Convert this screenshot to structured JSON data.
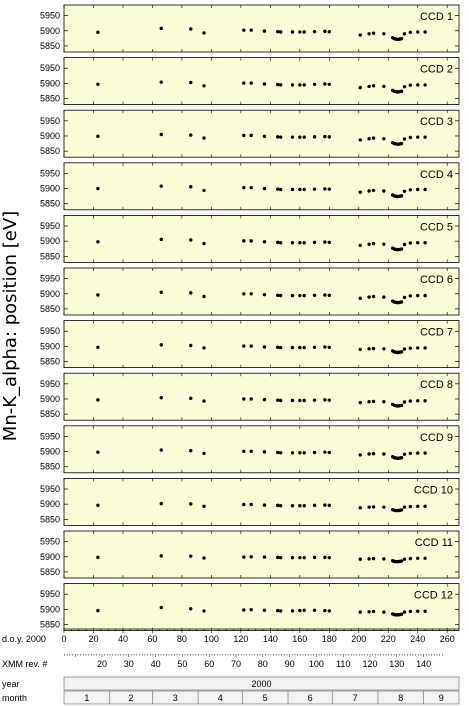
{
  "chart_data": {
    "type": "scatter",
    "ylabel": "Mn-K_alpha:  position  [eV]",
    "panels": [
      {
        "label": "CCD 1"
      },
      {
        "label": "CCD 2"
      },
      {
        "label": "CCD 3"
      },
      {
        "label": "CCD 4"
      },
      {
        "label": "CCD 5"
      },
      {
        "label": "CCD 6"
      },
      {
        "label": "CCD 7"
      },
      {
        "label": "CCD 8"
      },
      {
        "label": "CCD 9"
      },
      {
        "label": "CCD 10"
      },
      {
        "label": "CCD 11"
      },
      {
        "label": "CCD 12"
      }
    ],
    "y_ticks": [
      5950,
      5900,
      5850
    ],
    "ylim": [
      5830,
      5985
    ],
    "xlim": [
      0,
      268
    ],
    "x": [
      23,
      66,
      86,
      95,
      122,
      127,
      136,
      145,
      147,
      155,
      160,
      163,
      170,
      177,
      180,
      201,
      207,
      210,
      217,
      223,
      224,
      225,
      226,
      227,
      228,
      229,
      231,
      235,
      240,
      245
    ],
    "series": [
      {
        "values": [
          5895,
          5908,
          5906,
          5893,
          5902,
          5902,
          5899,
          5897,
          5896,
          5896,
          5896,
          5896,
          5897,
          5898,
          5897,
          5886,
          5890,
          5892,
          5890,
          5877,
          5874,
          5873,
          5872,
          5872,
          5873,
          5874,
          5890,
          5895,
          5896,
          5896
        ]
      },
      {
        "values": [
          5897,
          5904,
          5903,
          5892,
          5901,
          5901,
          5898,
          5896,
          5895,
          5895,
          5895,
          5895,
          5897,
          5898,
          5897,
          5886,
          5890,
          5892,
          5890,
          5877,
          5874,
          5873,
          5872,
          5872,
          5873,
          5874,
          5889,
          5894,
          5895,
          5895
        ]
      },
      {
        "values": [
          5899,
          5905,
          5903,
          5893,
          5902,
          5902,
          5899,
          5897,
          5896,
          5896,
          5896,
          5896,
          5897,
          5898,
          5897,
          5887,
          5891,
          5893,
          5891,
          5878,
          5875,
          5874,
          5873,
          5873,
          5874,
          5875,
          5890,
          5895,
          5896,
          5896
        ]
      },
      {
        "values": [
          5900,
          5908,
          5906,
          5894,
          5903,
          5903,
          5900,
          5898,
          5897,
          5897,
          5897,
          5897,
          5898,
          5899,
          5898,
          5888,
          5892,
          5894,
          5892,
          5879,
          5876,
          5875,
          5874,
          5874,
          5875,
          5876,
          5891,
          5896,
          5897,
          5897
        ]
      },
      {
        "values": [
          5898,
          5906,
          5904,
          5892,
          5901,
          5901,
          5898,
          5896,
          5895,
          5895,
          5895,
          5895,
          5896,
          5897,
          5896,
          5886,
          5890,
          5892,
          5890,
          5877,
          5874,
          5873,
          5872,
          5872,
          5873,
          5874,
          5889,
          5894,
          5895,
          5895
        ]
      },
      {
        "values": [
          5896,
          5905,
          5903,
          5891,
          5900,
          5900,
          5897,
          5895,
          5894,
          5894,
          5894,
          5894,
          5895,
          5896,
          5895,
          5885,
          5889,
          5891,
          5889,
          5876,
          5873,
          5872,
          5871,
          5871,
          5872,
          5873,
          5888,
          5893,
          5894,
          5894
        ]
      },
      {
        "values": [
          5897,
          5905,
          5903,
          5895,
          5901,
          5901,
          5898,
          5897,
          5896,
          5896,
          5896,
          5896,
          5897,
          5898,
          5897,
          5890,
          5892,
          5893,
          5892,
          5885,
          5882,
          5881,
          5880,
          5880,
          5881,
          5882,
          5891,
          5894,
          5895,
          5895
        ]
      },
      {
        "values": [
          5897,
          5904,
          5902,
          5893,
          5900,
          5900,
          5898,
          5896,
          5895,
          5895,
          5895,
          5895,
          5896,
          5897,
          5896,
          5888,
          5891,
          5892,
          5891,
          5882,
          5879,
          5878,
          5877,
          5877,
          5878,
          5879,
          5890,
          5893,
          5894,
          5894
        ]
      },
      {
        "values": [
          5898,
          5905,
          5903,
          5894,
          5901,
          5901,
          5899,
          5897,
          5896,
          5896,
          5896,
          5896,
          5897,
          5898,
          5897,
          5889,
          5892,
          5893,
          5892,
          5883,
          5880,
          5879,
          5878,
          5878,
          5879,
          5880,
          5891,
          5894,
          5895,
          5895
        ]
      },
      {
        "values": [
          5896,
          5902,
          5901,
          5893,
          5899,
          5899,
          5897,
          5896,
          5895,
          5895,
          5895,
          5895,
          5896,
          5897,
          5896,
          5888,
          5890,
          5891,
          5890,
          5882,
          5880,
          5879,
          5879,
          5879,
          5880,
          5881,
          5890,
          5892,
          5893,
          5893
        ]
      },
      {
        "values": [
          5898,
          5903,
          5902,
          5896,
          5899,
          5900,
          5899,
          5898,
          5897,
          5897,
          5897,
          5897,
          5898,
          5898,
          5897,
          5892,
          5893,
          5894,
          5893,
          5887,
          5885,
          5884,
          5884,
          5884,
          5885,
          5886,
          5892,
          5894,
          5895,
          5895
        ]
      },
      {
        "values": [
          5896,
          5906,
          5902,
          5895,
          5898,
          5899,
          5897,
          5896,
          5895,
          5895,
          5896,
          5897,
          5897,
          5896,
          5895,
          5891,
          5892,
          5893,
          5891,
          5885,
          5883,
          5882,
          5882,
          5882,
          5883,
          5884,
          5891,
          5893,
          5894,
          5894
        ]
      }
    ],
    "doy_axis": {
      "label": "d.o.y. 2000",
      "ticks": [
        0,
        20,
        40,
        60,
        80,
        100,
        120,
        140,
        160,
        180,
        200,
        220,
        240,
        260
      ]
    },
    "rev_axis": {
      "label": "XMM rev. #",
      "ticks": [
        20,
        30,
        40,
        50,
        60,
        70,
        80,
        90,
        100,
        110,
        120,
        130,
        140
      ]
    },
    "year_axis": {
      "label": "year",
      "value": "2000"
    },
    "month_axis": {
      "label": "month",
      "months": [
        "1",
        "2",
        "3",
        "4",
        "5",
        "6",
        "7",
        "8",
        "9"
      ]
    }
  },
  "colors": {
    "panel_bg": "#fcfcd8",
    "point": "#000000",
    "axis": "#000000"
  }
}
